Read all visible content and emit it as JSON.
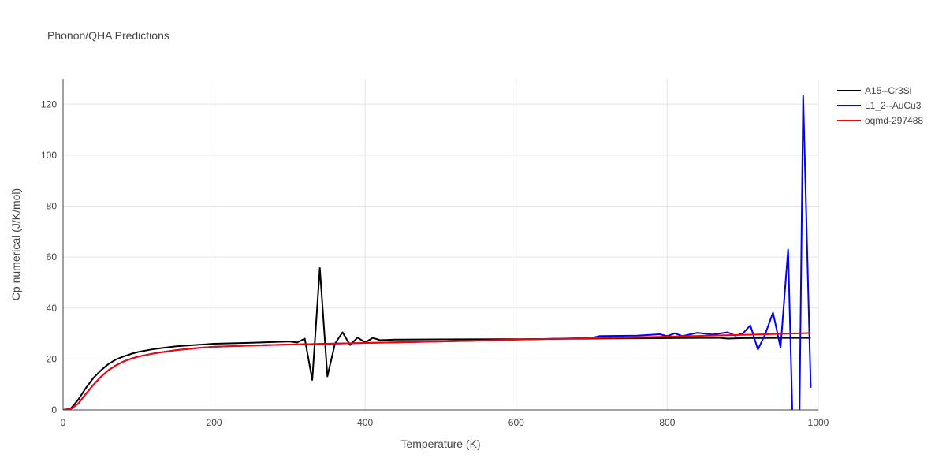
{
  "chart_data": {
    "type": "line",
    "title": "Phonon/QHA Predictions",
    "xlabel": "Temperature (K)",
    "ylabel": "Cp numerical (J/K/mol)",
    "xlim": [
      0,
      1000
    ],
    "ylim": [
      0,
      130
    ],
    "xticks": [
      0,
      200,
      400,
      600,
      800,
      1000
    ],
    "yticks": [
      0,
      20,
      40,
      60,
      80,
      100,
      120
    ],
    "grid": true,
    "legend_position": "top-right",
    "series": [
      {
        "name": "A15--Cr3Si",
        "color": "#000000",
        "x": [
          0,
          10,
          20,
          30,
          40,
          50,
          60,
          70,
          80,
          90,
          100,
          120,
          150,
          180,
          200,
          250,
          300,
          310,
          320,
          330,
          340,
          350,
          360,
          370,
          380,
          390,
          400,
          410,
          420,
          440,
          500,
          600,
          700,
          800,
          850,
          870,
          880,
          900,
          950,
          990
        ],
        "y": [
          0,
          0.5,
          4.0,
          8.5,
          12.5,
          15.5,
          18.0,
          19.8,
          21.0,
          22.0,
          22.8,
          23.9,
          25.0,
          25.6,
          26.0,
          26.4,
          26.9,
          26.5,
          28.0,
          11.8,
          55.7,
          13.2,
          26.0,
          30.5,
          25.5,
          28.4,
          26.5,
          28.3,
          27.4,
          27.6,
          27.7,
          27.8,
          28.0,
          28.2,
          28.3,
          28.3,
          28.0,
          28.2,
          28.3,
          28.3
        ]
      },
      {
        "name": "L1_2--AuCu3",
        "color": "#0000ff",
        "x": [
          0,
          10,
          20,
          30,
          40,
          50,
          60,
          70,
          80,
          90,
          100,
          120,
          150,
          180,
          200,
          250,
          300,
          350,
          400,
          500,
          600,
          700,
          710,
          760,
          790,
          800,
          810,
          820,
          840,
          860,
          880,
          890,
          900,
          910,
          920,
          930,
          940,
          950,
          960,
          966,
          975,
          980,
          990
        ],
        "y": [
          0,
          0.3,
          2.5,
          6.2,
          9.8,
          13.0,
          15.6,
          17.5,
          19.0,
          20.1,
          21.0,
          22.2,
          23.5,
          24.4,
          24.8,
          25.3,
          25.7,
          26.0,
          26.3,
          26.9,
          27.6,
          28.3,
          29.0,
          29.2,
          29.7,
          29.0,
          30.1,
          29.0,
          30.3,
          29.6,
          30.5,
          29.2,
          30.0,
          33.2,
          23.7,
          30.0,
          38.2,
          24.5,
          63.0,
          -5.0,
          -5.0,
          123.5,
          8.7
        ]
      },
      {
        "name": "oqmd-297488",
        "color": "#ff0000",
        "x": [
          0,
          10,
          20,
          30,
          40,
          50,
          60,
          70,
          80,
          90,
          100,
          120,
          150,
          180,
          200,
          250,
          300,
          350,
          400,
          500,
          600,
          700,
          800,
          900,
          990
        ],
        "y": [
          0,
          0.3,
          2.5,
          6.2,
          9.8,
          13.0,
          15.6,
          17.5,
          19.0,
          20.1,
          21.0,
          22.2,
          23.5,
          24.4,
          24.8,
          25.3,
          25.7,
          26.0,
          26.3,
          26.9,
          27.6,
          28.2,
          28.8,
          29.5,
          30.2
        ]
      }
    ]
  }
}
